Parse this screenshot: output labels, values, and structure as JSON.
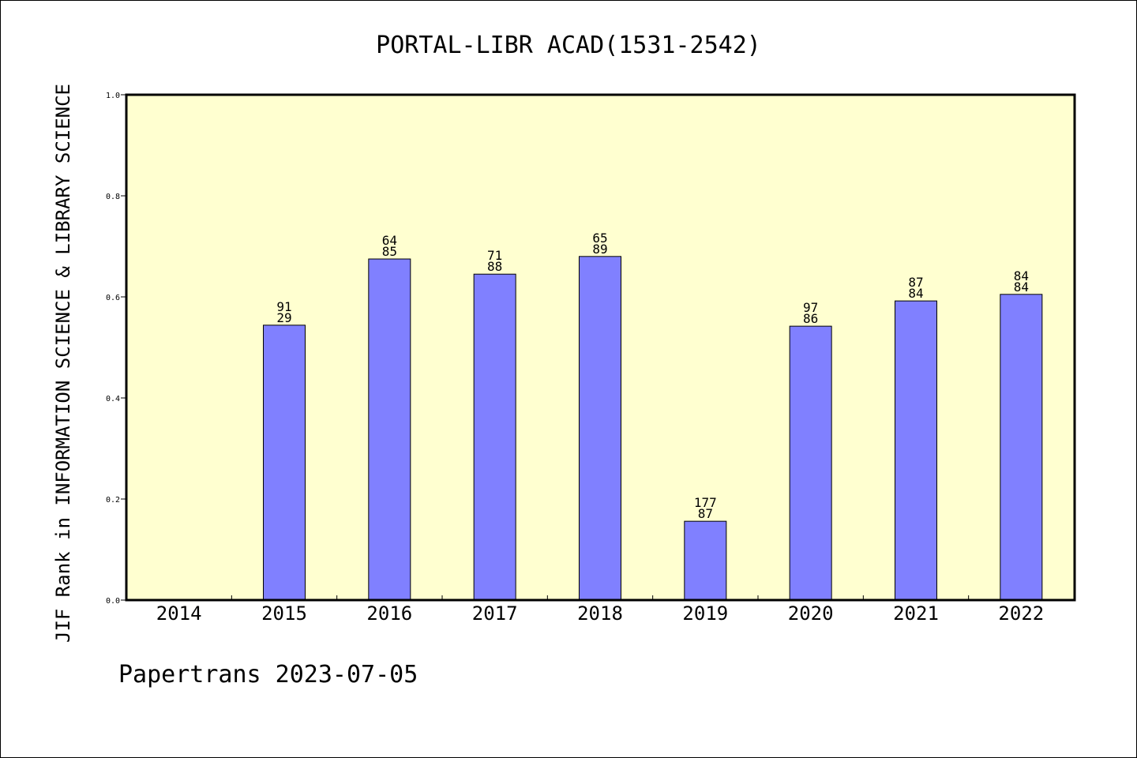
{
  "chart_data": {
    "type": "bar",
    "title": "PORTAL-LIBR ACAD(1531-2542)",
    "ylabel": "JIF Rank in INFORMATION SCIENCE & LIBRARY SCIENCE",
    "xlabel": "",
    "footer": "Papertrans 2023-07-05",
    "categories": [
      "2014",
      "2015",
      "2016",
      "2017",
      "2018",
      "2019",
      "2020",
      "2021",
      "2022"
    ],
    "values": [
      null,
      0.544,
      0.675,
      0.645,
      0.68,
      0.156,
      0.542,
      0.592,
      0.605
    ],
    "labels": [
      null,
      {
        "top": "91",
        "bottom": "29"
      },
      {
        "top": "64",
        "bottom": "85"
      },
      {
        "top": "71",
        "bottom": "88"
      },
      {
        "top": "65",
        "bottom": "89"
      },
      {
        "top": "177",
        "bottom": "87"
      },
      {
        "top": "97",
        "bottom": "86"
      },
      {
        "top": "87",
        "bottom": "84"
      },
      {
        "top": "84",
        "bottom": "84"
      }
    ],
    "ylim": [
      0,
      1.0
    ],
    "yticks": [
      "0.0",
      "0.2",
      "0.4",
      "0.6",
      "0.8",
      "1.0"
    ],
    "grid": false,
    "colors": {
      "plot_background": "#ffffd0",
      "bar_fill": "#8080ff",
      "bar_stroke": "#000000"
    }
  }
}
